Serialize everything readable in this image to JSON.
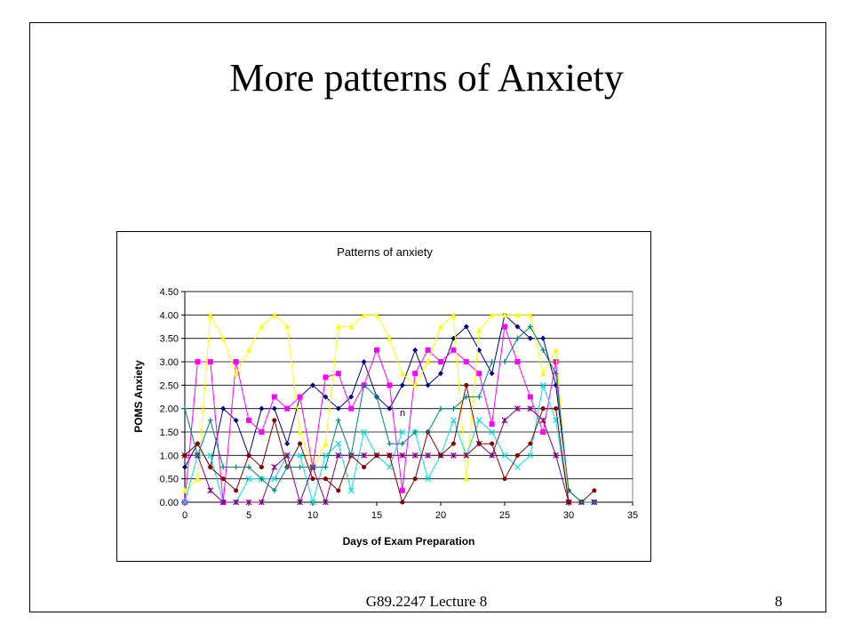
{
  "slide": {
    "title": "More patterns of Anxiety",
    "footer": "G89.2247 Lecture 8",
    "page_number": "8"
  },
  "chart_data": {
    "type": "line",
    "title": "Patterns of anxiety",
    "xlabel": "Days of Exam Preparation",
    "ylabel": "POMS Anxiety",
    "xlim": [
      0,
      35
    ],
    "ylim": [
      0,
      4.5
    ],
    "x_ticks": [
      "0",
      "5",
      "10",
      "15",
      "20",
      "25",
      "30",
      "35"
    ],
    "y_ticks": [
      "0.00",
      "0.50",
      "1.00",
      "1.50",
      "2.00",
      "2.50",
      "3.00",
      "3.50",
      "4.00",
      "4.50"
    ],
    "grid": "horizontal",
    "annotation": "n",
    "series": [
      {
        "color": "#000080",
        "marker": "diamond",
        "points": [
          [
            0,
            0.75
          ],
          [
            1,
            1.25
          ],
          [
            2,
            0.75
          ],
          [
            3,
            2.0
          ],
          [
            4,
            1.75
          ],
          [
            5,
            1.0
          ],
          [
            6,
            2.0
          ],
          [
            7,
            2.0
          ],
          [
            8,
            1.25
          ],
          [
            9,
            2.25
          ],
          [
            10,
            2.5
          ],
          [
            11,
            2.25
          ],
          [
            12,
            2.0
          ],
          [
            13,
            2.25
          ],
          [
            14,
            3.0
          ],
          [
            15,
            2.25
          ],
          [
            16,
            2.0
          ],
          [
            17,
            2.5
          ],
          [
            18,
            3.25
          ],
          [
            19,
            2.5
          ],
          [
            20,
            2.75
          ],
          [
            21,
            3.5
          ],
          [
            22,
            3.75
          ],
          [
            23,
            3.25
          ],
          [
            24,
            2.75
          ],
          [
            25,
            4.0
          ],
          [
            26,
            3.75
          ],
          [
            27,
            3.5
          ],
          [
            28,
            3.5
          ],
          [
            29,
            2.5
          ],
          [
            30,
            0.25
          ],
          [
            31,
            0.0
          ],
          [
            32,
            0.0
          ]
        ]
      },
      {
        "color": "#ff00ff",
        "marker": "square",
        "points": [
          [
            0,
            0.0
          ],
          [
            1,
            3.0
          ],
          [
            2,
            3.0
          ],
          [
            3,
            0.0
          ],
          [
            4,
            3.0
          ],
          [
            5,
            1.75
          ],
          [
            6,
            1.5
          ],
          [
            7,
            2.25
          ],
          [
            8,
            2.0
          ],
          [
            9,
            2.25
          ],
          [
            10,
            0.75
          ],
          [
            11,
            2.67
          ],
          [
            12,
            2.75
          ],
          [
            13,
            2.0
          ],
          [
            14,
            2.5
          ],
          [
            15,
            3.25
          ],
          [
            16,
            2.5
          ],
          [
            17,
            0.25
          ],
          [
            18,
            2.75
          ],
          [
            19,
            3.25
          ],
          [
            20,
            3.0
          ],
          [
            21,
            3.25
          ],
          [
            22,
            3.0
          ],
          [
            23,
            2.75
          ],
          [
            24,
            1.67
          ],
          [
            25,
            3.75
          ],
          [
            26,
            3.0
          ],
          [
            27,
            2.25
          ],
          [
            28,
            1.5
          ],
          [
            29,
            3.0
          ],
          [
            30,
            0.0
          ],
          [
            31,
            0.0
          ],
          [
            32,
            0.0
          ]
        ]
      },
      {
        "color": "#ffff00",
        "marker": "triangle",
        "points": [
          [
            0,
            0.25
          ],
          [
            1,
            0.5
          ],
          [
            2,
            4.0
          ],
          [
            3,
            3.5
          ],
          [
            4,
            2.75
          ],
          [
            5,
            3.25
          ],
          [
            6,
            3.75
          ],
          [
            7,
            4.0
          ],
          [
            8,
            3.75
          ],
          [
            9,
            1.5
          ],
          [
            10,
            0.75
          ],
          [
            11,
            1.25
          ],
          [
            12,
            3.75
          ],
          [
            13,
            3.75
          ],
          [
            14,
            4.0
          ],
          [
            15,
            4.0
          ],
          [
            16,
            3.5
          ],
          [
            17,
            2.75
          ],
          [
            18,
            2.5
          ],
          [
            19,
            3.0
          ],
          [
            20,
            3.75
          ],
          [
            21,
            4.0
          ],
          [
            22,
            0.5
          ],
          [
            23,
            3.67
          ],
          [
            24,
            4.0
          ],
          [
            25,
            4.0
          ],
          [
            26,
            4.0
          ],
          [
            27,
            4.0
          ],
          [
            28,
            2.75
          ],
          [
            29,
            3.25
          ],
          [
            30,
            0.0
          ],
          [
            31,
            0.0
          ],
          [
            32,
            0.0
          ]
        ]
      },
      {
        "color": "#00e0e0",
        "marker": "x",
        "points": [
          [
            0,
            0.0
          ],
          [
            1,
            1.0
          ],
          [
            2,
            1.0
          ],
          [
            3,
            0.0
          ],
          [
            4,
            0.0
          ],
          [
            5,
            0.5
          ],
          [
            6,
            0.5
          ],
          [
            7,
            0.5
          ],
          [
            8,
            1.0
          ],
          [
            9,
            1.0
          ],
          [
            10,
            0.0
          ],
          [
            11,
            1.0
          ],
          [
            12,
            1.25
          ],
          [
            13,
            0.25
          ],
          [
            14,
            1.5
          ],
          [
            15,
            1.0
          ],
          [
            16,
            0.75
          ],
          [
            17,
            1.5
          ],
          [
            18,
            1.5
          ],
          [
            19,
            0.5
          ],
          [
            20,
            1.0
          ],
          [
            21,
            1.75
          ],
          [
            22,
            1.0
          ],
          [
            23,
            1.75
          ],
          [
            24,
            1.5
          ],
          [
            25,
            1.0
          ],
          [
            26,
            0.75
          ],
          [
            27,
            1.0
          ],
          [
            28,
            2.5
          ],
          [
            29,
            1.75
          ],
          [
            30,
            0.0
          ],
          [
            31,
            0.0
          ],
          [
            32,
            0.0
          ]
        ]
      },
      {
        "color": "#800080",
        "marker": "star",
        "points": [
          [
            0,
            1.0
          ],
          [
            1,
            1.0
          ],
          [
            2,
            0.25
          ],
          [
            3,
            0.0
          ],
          [
            4,
            0.0
          ],
          [
            5,
            0.0
          ],
          [
            6,
            0.0
          ],
          [
            7,
            0.75
          ],
          [
            8,
            1.0
          ],
          [
            9,
            0.0
          ],
          [
            10,
            0.75
          ],
          [
            11,
            0.0
          ],
          [
            12,
            1.0
          ],
          [
            13,
            1.0
          ],
          [
            14,
            1.0
          ],
          [
            15,
            1.0
          ],
          [
            16,
            1.0
          ],
          [
            17,
            1.0
          ],
          [
            18,
            1.0
          ],
          [
            19,
            1.0
          ],
          [
            20,
            1.0
          ],
          [
            21,
            1.0
          ],
          [
            22,
            1.0
          ],
          [
            23,
            1.25
          ],
          [
            24,
            1.0
          ],
          [
            25,
            1.75
          ],
          [
            26,
            2.0
          ],
          [
            27,
            2.0
          ],
          [
            28,
            1.75
          ],
          [
            29,
            1.0
          ],
          [
            30,
            0.0
          ],
          [
            31,
            0.0
          ],
          [
            32,
            0.0
          ]
        ]
      },
      {
        "color": "#800000",
        "marker": "circle",
        "points": [
          [
            0,
            1.0
          ],
          [
            1,
            1.25
          ],
          [
            2,
            0.75
          ],
          [
            3,
            0.5
          ],
          [
            4,
            0.25
          ],
          [
            5,
            1.0
          ],
          [
            6,
            0.75
          ],
          [
            7,
            1.75
          ],
          [
            8,
            0.75
          ],
          [
            9,
            1.25
          ],
          [
            10,
            0.5
          ],
          [
            11,
            0.5
          ],
          [
            12,
            0.25
          ],
          [
            13,
            1.0
          ],
          [
            14,
            0.75
          ],
          [
            15,
            1.0
          ],
          [
            16,
            1.0
          ],
          [
            17,
            0.0
          ],
          [
            18,
            0.5
          ],
          [
            19,
            1.5
          ],
          [
            20,
            1.0
          ],
          [
            21,
            1.25
          ],
          [
            22,
            2.5
          ],
          [
            23,
            1.25
          ],
          [
            24,
            1.25
          ],
          [
            25,
            0.5
          ],
          [
            26,
            1.0
          ],
          [
            27,
            1.25
          ],
          [
            28,
            2.0
          ],
          [
            29,
            2.0
          ],
          [
            30,
            0.0
          ],
          [
            31,
            0.0
          ],
          [
            32,
            0.25
          ]
        ]
      },
      {
        "color": "#008080",
        "marker": "plus",
        "points": [
          [
            0,
            2.0
          ],
          [
            1,
            1.0
          ],
          [
            2,
            1.75
          ],
          [
            3,
            0.75
          ],
          [
            4,
            0.75
          ],
          [
            5,
            0.75
          ],
          [
            6,
            0.5
          ],
          [
            7,
            0.25
          ],
          [
            8,
            0.75
          ],
          [
            9,
            0.75
          ],
          [
            10,
            0.75
          ],
          [
            11,
            0.75
          ],
          [
            12,
            1.75
          ],
          [
            13,
            1.0
          ],
          [
            14,
            2.5
          ],
          [
            15,
            2.25
          ],
          [
            16,
            1.25
          ],
          [
            17,
            1.25
          ],
          [
            18,
            1.5
          ],
          [
            19,
            1.5
          ],
          [
            20,
            2.0
          ],
          [
            21,
            2.0
          ],
          [
            22,
            2.25
          ],
          [
            23,
            2.25
          ],
          [
            24,
            3.0
          ],
          [
            25,
            3.0
          ],
          [
            26,
            3.5
          ],
          [
            27,
            3.75
          ],
          [
            28,
            3.25
          ],
          [
            29,
            2.75
          ],
          [
            30,
            0.25
          ],
          [
            31,
            0.0
          ],
          [
            32,
            0.0
          ]
        ]
      }
    ]
  }
}
